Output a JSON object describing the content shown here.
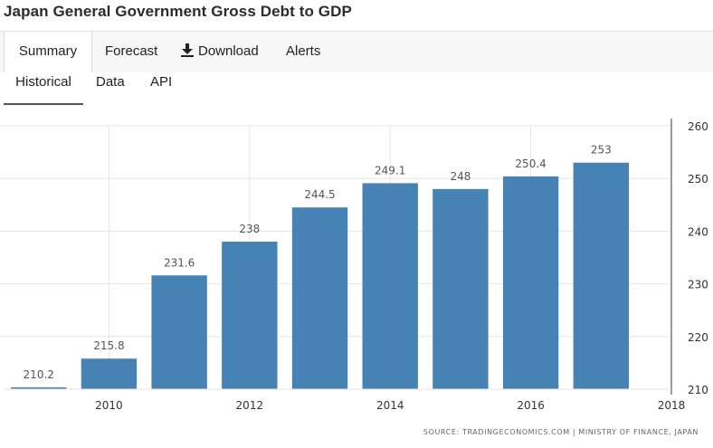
{
  "header": {
    "title": "Japan General Government Gross Debt to GDP"
  },
  "tabs": [
    {
      "label": "Summary"
    },
    {
      "label": "Forecast"
    },
    {
      "label": "Download"
    },
    {
      "label": "Alerts"
    }
  ],
  "subtabs": [
    {
      "label": "Historical"
    },
    {
      "label": "Data"
    },
    {
      "label": "API"
    }
  ],
  "colors": {
    "bar": "#4682b4",
    "grid": "#e6e6e6",
    "axis": "#333333"
  },
  "chart_data": {
    "type": "bar",
    "title": "Japan General Government Gross Debt to GDP",
    "categories": [
      "2009",
      "2010",
      "2011",
      "2012",
      "2013",
      "2014",
      "2015",
      "2016",
      "2017"
    ],
    "values": [
      210.2,
      215.8,
      231.6,
      238,
      244.5,
      249.1,
      248,
      250.4,
      253
    ],
    "data_labels": [
      "210.2",
      "215.8",
      "231.6",
      "238",
      "244.5",
      "249.1",
      "248",
      "250.4",
      "253"
    ],
    "x_ticks": [
      "2010",
      "2012",
      "2014",
      "2016",
      "2018"
    ],
    "x_tick_values": [
      2010,
      2012,
      2014,
      2016,
      2018
    ],
    "xlim": [
      2008.45,
      2018
    ],
    "y_ticks": [
      "210",
      "220",
      "230",
      "240",
      "250",
      "260"
    ],
    "y_tick_values": [
      210,
      220,
      230,
      240,
      250,
      260
    ],
    "ylim": [
      210,
      260
    ],
    "y_axis_side": "right",
    "grid": true,
    "xlabel": "",
    "ylabel": ""
  },
  "footer": {
    "source": "SOURCE: TRADINGECONOMICS.COM  |  MINISTRY OF FINANCE, JAPAN"
  }
}
